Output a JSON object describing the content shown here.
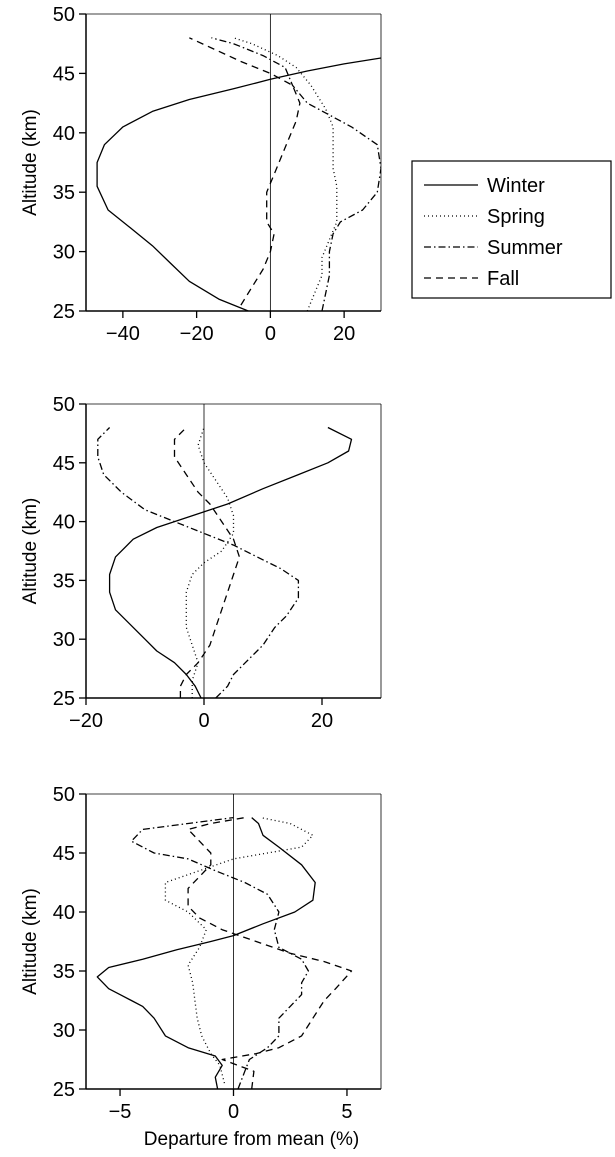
{
  "legend": [
    {
      "label": "Winter",
      "dash": "solid"
    },
    {
      "label": "Spring",
      "dash": "dotted"
    },
    {
      "label": "Summer",
      "dash": "dashdot"
    },
    {
      "label": "Fall",
      "dash": "dashed"
    }
  ],
  "chart_data": [
    {
      "type": "line",
      "ylabel": "Altitude (km)",
      "xlabel": "",
      "xlim": [
        -50,
        30
      ],
      "ylim": [
        25,
        50
      ],
      "xticks": [
        -40,
        -20,
        0,
        20
      ],
      "yticks": [
        25,
        30,
        35,
        40,
        45,
        50
      ],
      "grid": false,
      "zero_line": true,
      "series": [
        {
          "name": "Winter",
          "points": [
            [
              -6,
              25
            ],
            [
              -14,
              26
            ],
            [
              -22,
              27.5
            ],
            [
              -27,
              29
            ],
            [
              -32,
              30.5
            ],
            [
              -38,
              32
            ],
            [
              -44,
              33.5
            ],
            [
              -47,
              35.5
            ],
            [
              -47,
              37.5
            ],
            [
              -45,
              39
            ],
            [
              -40,
              40.5
            ],
            [
              -32,
              41.8
            ],
            [
              -22,
              42.8
            ],
            [
              -10,
              43.7
            ],
            [
              0,
              44.5
            ],
            [
              10,
              45.2
            ],
            [
              20,
              45.8
            ],
            [
              30,
              46.3
            ]
          ]
        },
        {
          "name": "Spring",
          "points": [
            [
              10,
              25
            ],
            [
              12,
              26.5
            ],
            [
              14,
              28
            ],
            [
              14,
              29.5
            ],
            [
              16,
              31
            ],
            [
              18,
              32.5
            ],
            [
              18,
              34
            ],
            [
              18,
              35.5
            ],
            [
              17,
              37
            ],
            [
              17,
              39
            ],
            [
              17,
              40.5
            ],
            [
              15,
              42
            ],
            [
              11,
              44
            ],
            [
              7,
              45.5
            ],
            [
              2,
              46.5
            ],
            [
              -5,
              47.5
            ],
            [
              -10,
              48
            ]
          ]
        },
        {
          "name": "Summer",
          "points": [
            [
              14,
              25
            ],
            [
              15,
              26.5
            ],
            [
              16,
              28
            ],
            [
              16,
              30
            ],
            [
              17,
              31.5
            ],
            [
              19,
              32.5
            ],
            [
              25,
              33.5
            ],
            [
              29,
              35
            ],
            [
              30,
              37
            ],
            [
              29,
              39
            ],
            [
              22,
              40.5
            ],
            [
              16,
              41.5
            ],
            [
              10,
              42.5
            ],
            [
              6,
              44
            ],
            [
              4,
              45.5
            ],
            [
              -2,
              46.5
            ],
            [
              -10,
              47.5
            ],
            [
              -16,
              48
            ]
          ]
        },
        {
          "name": "Fall",
          "points": [
            [
              -8,
              25.5
            ],
            [
              -5,
              27
            ],
            [
              -2,
              28.5
            ],
            [
              0,
              30
            ],
            [
              1,
              31.5
            ],
            [
              -1,
              32.5
            ],
            [
              -1,
              33.5
            ],
            [
              -1,
              35
            ],
            [
              1,
              36.5
            ],
            [
              3,
              38
            ],
            [
              5,
              39.5
            ],
            [
              7,
              41
            ],
            [
              8,
              42.5
            ],
            [
              6,
              44
            ],
            [
              0,
              45
            ],
            [
              -8,
              46
            ],
            [
              -15,
              47
            ],
            [
              -22,
              48
            ]
          ]
        }
      ]
    },
    {
      "type": "line",
      "ylabel": "Altitude (km)",
      "xlabel": "",
      "xlim": [
        -20,
        30
      ],
      "ylim": [
        25,
        50
      ],
      "xticks": [
        -20,
        0,
        20
      ],
      "yticks": [
        25,
        30,
        35,
        40,
        45,
        50
      ],
      "grid": false,
      "zero_line": true,
      "series": [
        {
          "name": "Winter",
          "points": [
            [
              -0.5,
              25
            ],
            [
              -1.5,
              26
            ],
            [
              -3,
              27
            ],
            [
              -5,
              28
            ],
            [
              -8,
              29
            ],
            [
              -10,
              30
            ],
            [
              -12,
              31
            ],
            [
              -15,
              32.5
            ],
            [
              -16,
              34
            ],
            [
              -16,
              35.5
            ],
            [
              -15,
              37
            ],
            [
              -12,
              38.5
            ],
            [
              -8,
              39.5
            ],
            [
              -2,
              40.5
            ],
            [
              4,
              41.5
            ],
            [
              10,
              42.8
            ],
            [
              16,
              44
            ],
            [
              21,
              45
            ],
            [
              24.5,
              46
            ],
            [
              25,
              47
            ],
            [
              21,
              48
            ]
          ]
        },
        {
          "name": "Spring",
          "points": [
            [
              -2,
              25
            ],
            [
              -2,
              26.5
            ],
            [
              -1,
              28
            ],
            [
              -2,
              29.5
            ],
            [
              -3,
              31
            ],
            [
              -3,
              32.5
            ],
            [
              -3,
              34
            ],
            [
              -2,
              35.5
            ],
            [
              0,
              36.5
            ],
            [
              3,
              37.5
            ],
            [
              5,
              39
            ],
            [
              5,
              40.5
            ],
            [
              4,
              42
            ],
            [
              2,
              43.5
            ],
            [
              0,
              45
            ],
            [
              -1,
              46.5
            ],
            [
              0,
              48
            ]
          ]
        },
        {
          "name": "Summer",
          "points": [
            [
              2,
              25
            ],
            [
              4,
              26
            ],
            [
              5,
              27
            ],
            [
              7,
              28
            ],
            [
              10,
              29.5
            ],
            [
              12,
              31
            ],
            [
              14,
              32
            ],
            [
              16,
              33.5
            ],
            [
              16,
              35
            ],
            [
              13,
              36
            ],
            [
              9,
              37
            ],
            [
              5,
              38
            ],
            [
              0,
              39
            ],
            [
              -5,
              40
            ],
            [
              -10,
              41
            ],
            [
              -14,
              42.5
            ],
            [
              -17,
              44
            ],
            [
              -18,
              45.5
            ],
            [
              -18,
              47
            ],
            [
              -16,
              48
            ]
          ]
        },
        {
          "name": "Fall",
          "points": [
            [
              -4,
              25
            ],
            [
              -4,
              26
            ],
            [
              -3,
              27
            ],
            [
              -1,
              28
            ],
            [
              1,
              29.5
            ],
            [
              2,
              31
            ],
            [
              3,
              32.5
            ],
            [
              4,
              34
            ],
            [
              5,
              35.5
            ],
            [
              6,
              37
            ],
            [
              5,
              38.5
            ],
            [
              3,
              40
            ],
            [
              1,
              41.5
            ],
            [
              -1,
              42.5
            ],
            [
              -3,
              44
            ],
            [
              -5,
              45.5
            ],
            [
              -5,
              47
            ],
            [
              -3,
              48
            ]
          ]
        }
      ]
    },
    {
      "type": "line",
      "ylabel": "Altitude (km)",
      "xlabel": "Departure from mean (%)",
      "xlim": [
        -6.5,
        6.5
      ],
      "ylim": [
        25,
        50
      ],
      "xticks": [
        -5,
        0,
        5
      ],
      "yticks": [
        25,
        30,
        35,
        40,
        45,
        50
      ],
      "grid": false,
      "zero_line": true,
      "series": [
        {
          "name": "Winter",
          "points": [
            [
              -0.7,
              25
            ],
            [
              -0.8,
              26
            ],
            [
              -0.5,
              27
            ],
            [
              -0.8,
              27.8
            ],
            [
              -2,
              28.5
            ],
            [
              -3,
              29.5
            ],
            [
              -3.5,
              31
            ],
            [
              -4,
              32
            ],
            [
              -4.5,
              32.5
            ],
            [
              -5,
              33
            ],
            [
              -5.5,
              33.5
            ],
            [
              -6,
              34.5
            ],
            [
              -5.5,
              35.3
            ],
            [
              -4,
              36
            ],
            [
              -2.5,
              36.8
            ],
            [
              -1,
              37.5
            ],
            [
              0,
              38
            ],
            [
              1.3,
              39
            ],
            [
              2.7,
              40
            ],
            [
              3.5,
              41
            ],
            [
              3.6,
              42.5
            ],
            [
              3,
              44
            ],
            [
              2,
              45.5
            ],
            [
              1.3,
              46.5
            ],
            [
              1.1,
              47.5
            ],
            [
              0.8,
              48
            ]
          ]
        },
        {
          "name": "Spring",
          "points": [
            [
              -0.4,
              25.5
            ],
            [
              -0.6,
              27
            ],
            [
              -1,
              28
            ],
            [
              -1.4,
              29.5
            ],
            [
              -1.6,
              31
            ],
            [
              -1.7,
              32.5
            ],
            [
              -1.8,
              34
            ],
            [
              -2,
              35.5
            ],
            [
              -1.5,
              37
            ],
            [
              -1.2,
              38.5
            ],
            [
              -2,
              40
            ],
            [
              -3,
              41
            ],
            [
              -3,
              42.5
            ],
            [
              -1.5,
              43.5
            ],
            [
              0,
              44.5
            ],
            [
              1.5,
              45
            ],
            [
              3,
              45.5
            ],
            [
              3.5,
              46.5
            ],
            [
              2.5,
              47.5
            ],
            [
              1.2,
              48
            ]
          ]
        },
        {
          "name": "Summer",
          "points": [
            [
              0.2,
              25
            ],
            [
              0.5,
              26.5
            ],
            [
              0.7,
              27.5
            ],
            [
              1.5,
              28.5
            ],
            [
              2,
              29.5
            ],
            [
              2,
              31
            ],
            [
              2.5,
              32
            ],
            [
              3,
              33
            ],
            [
              3,
              34
            ],
            [
              3.3,
              35
            ],
            [
              3,
              36
            ],
            [
              2,
              37
            ],
            [
              1.8,
              38.5
            ],
            [
              2,
              40
            ],
            [
              1.5,
              41.5
            ],
            [
              0.5,
              42.5
            ],
            [
              -0.8,
              43.5
            ],
            [
              -2,
              44.5
            ],
            [
              -3.5,
              45
            ],
            [
              -4.5,
              46
            ],
            [
              -4,
              47
            ],
            [
              -2,
              47.5
            ],
            [
              0,
              48
            ]
          ]
        },
        {
          "name": "Fall",
          "points": [
            [
              0.8,
              25
            ],
            [
              0.9,
              26.5
            ],
            [
              -0.5,
              27.5
            ],
            [
              1,
              28
            ],
            [
              2,
              28.5
            ],
            [
              3,
              29.5
            ],
            [
              3.5,
              31
            ],
            [
              4,
              32.5
            ],
            [
              4.5,
              33.5
            ],
            [
              5.2,
              35
            ],
            [
              4,
              35.8
            ],
            [
              2.5,
              36.5
            ],
            [
              1,
              37.5
            ],
            [
              -0.5,
              38.5
            ],
            [
              -1.5,
              39.5
            ],
            [
              -2,
              40.5
            ],
            [
              -2,
              42
            ],
            [
              -1.5,
              43
            ],
            [
              -1,
              44
            ],
            [
              -1,
              45
            ],
            [
              -1.5,
              46
            ],
            [
              -2,
              47
            ],
            [
              -1,
              47.5
            ],
            [
              0.5,
              48
            ]
          ]
        }
      ]
    }
  ]
}
